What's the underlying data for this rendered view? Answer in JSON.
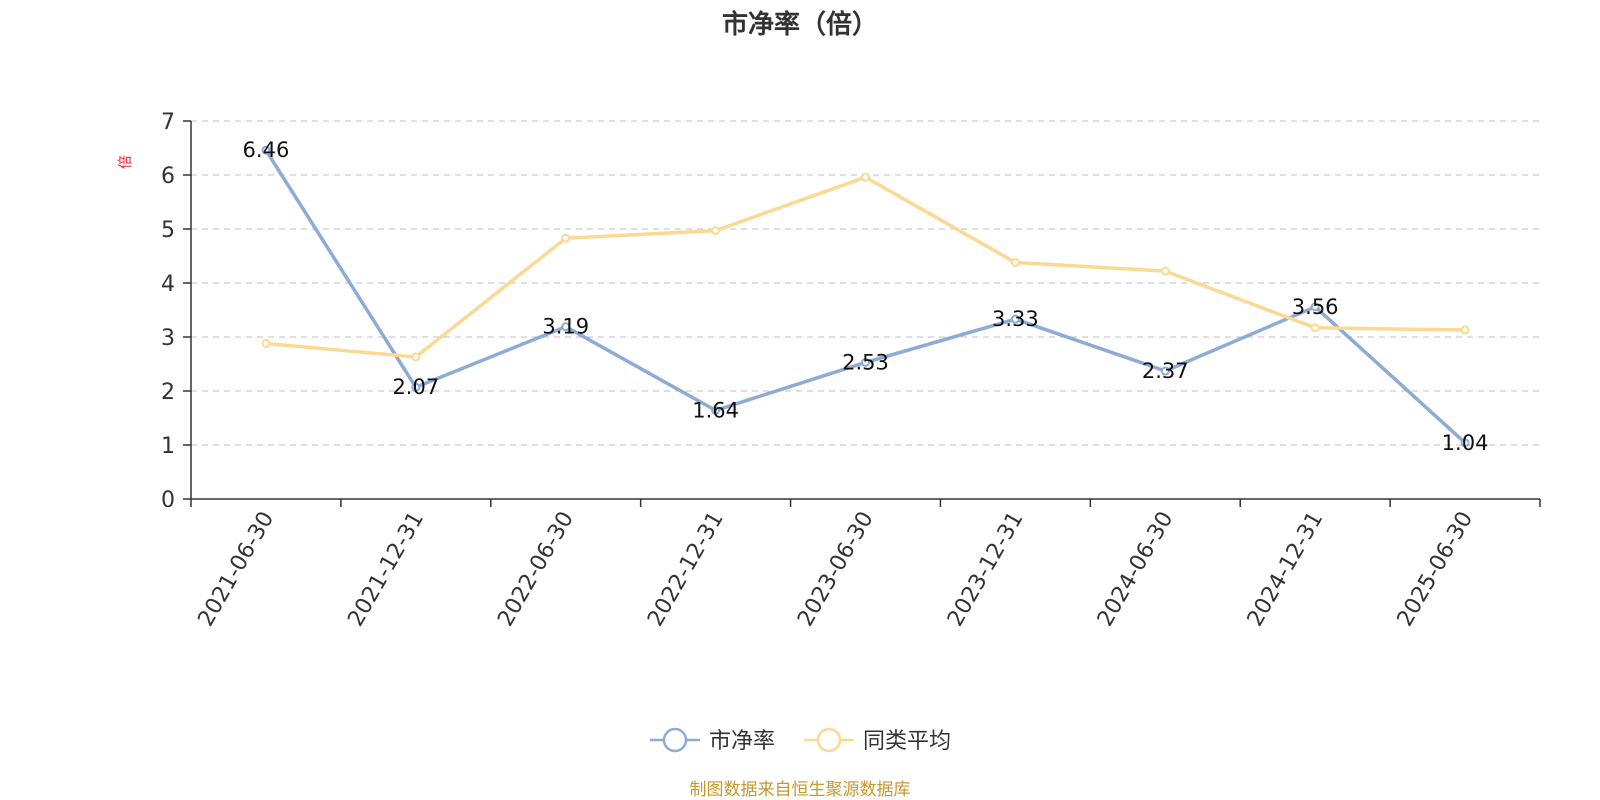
{
  "chart_data": {
    "type": "line",
    "title": "市净率（倍）",
    "ylabel": "倍",
    "ylim": [
      0,
      7
    ],
    "yticks": [
      0,
      1,
      2,
      3,
      4,
      5,
      6,
      7
    ],
    "grid": true,
    "legend_position": "bottom-center",
    "categories": [
      "2021-06-30",
      "2021-12-31",
      "2022-06-30",
      "2022-12-31",
      "2023-06-30",
      "2023-12-31",
      "2024-06-30",
      "2024-12-31",
      "2025-06-30"
    ],
    "series": [
      {
        "name": "市净率",
        "color": "#8eabd6",
        "values": [
          6.46,
          2.07,
          3.19,
          1.64,
          2.53,
          3.33,
          2.37,
          3.56,
          1.04
        ],
        "data_labels": [
          "6.46",
          "2.07",
          "3.19",
          "1.64",
          "2.53",
          "3.33",
          "2.37",
          "3.56",
          "1.04"
        ]
      },
      {
        "name": "同类平均",
        "color": "#fbd994",
        "values": [
          2.88,
          2.63,
          4.83,
          4.97,
          5.96,
          4.38,
          4.22,
          3.17,
          3.13
        ]
      }
    ]
  },
  "footer": {
    "source": "制图数据来自恒生聚源数据库"
  },
  "colors": {
    "axis": "#333333",
    "grid": "#cccccc",
    "unit_label": "#e0202a",
    "source_text": "#c8972e"
  }
}
